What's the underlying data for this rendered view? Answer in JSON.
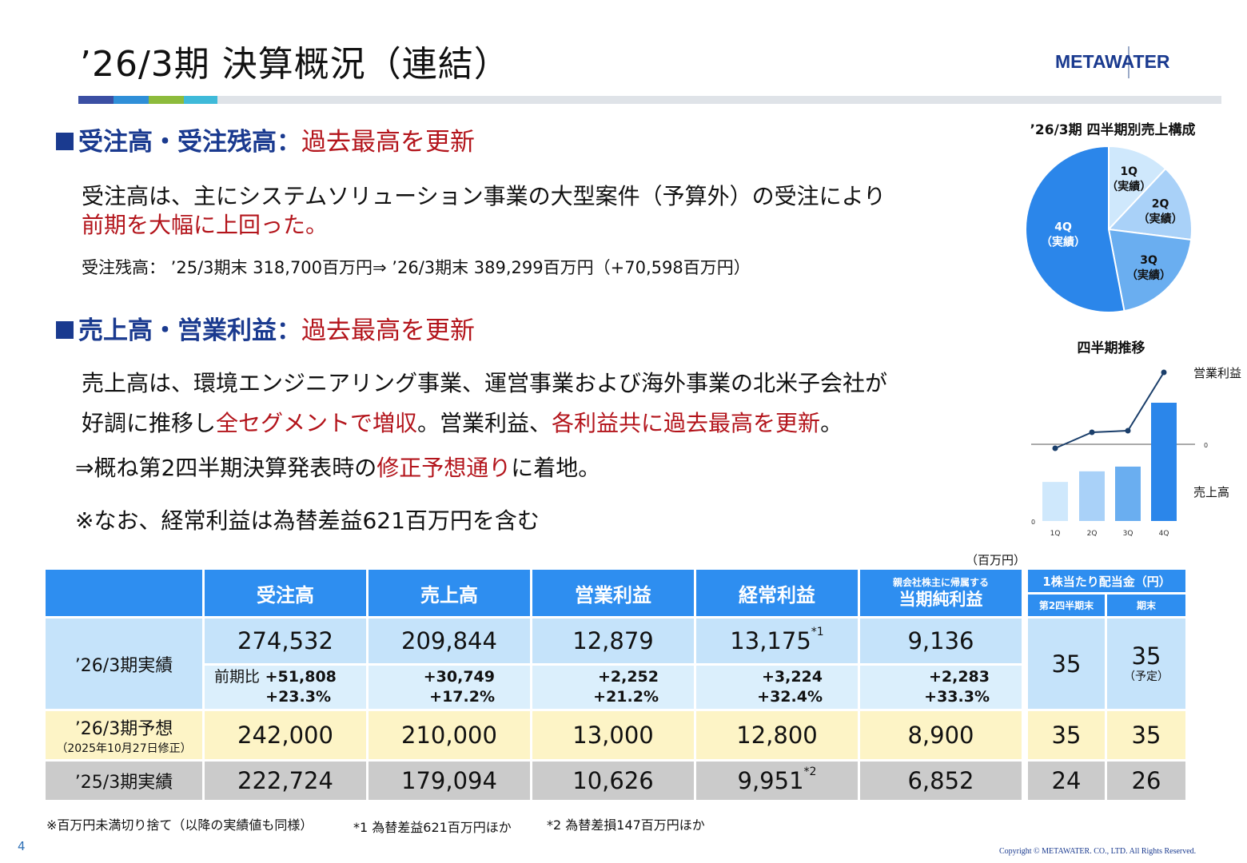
{
  "header": {
    "title": "’26/3期 決算概況（連結）",
    "logo_text": "METAWATER",
    "bar_colors": [
      "#3b4fa3",
      "#2f8fd8",
      "#8dbb3c",
      "#3fbad9",
      "#dfe3e8"
    ]
  },
  "section1": {
    "heading": "受注高・受注残高：",
    "highlight": "過去最高を更新",
    "line1": "受注高は、主にシステムソリューション事業の大型案件（予算外）の受注により",
    "line2": "前期を大幅に上回った。",
    "backlog": "受注残高： ’25/3期末 318,700百万円⇒ ’26/3期末 389,299百万円（+70,598百万円）"
  },
  "section2": {
    "heading": "売上高・営業利益：",
    "highlight": "過去最高を更新",
    "line1": "売上高は、環境エンジニアリング事業、運営事業および海外事業の北米子会社が",
    "line2_a": "好調に推移し",
    "line2_b": "全セグメントで増収",
    "line2_c": "。営業利益、",
    "line2_d": "各利益共に過去最高を更新",
    "line2_e": "。",
    "line3_a": "⇒概ね第2四半期決算発表時の",
    "line3_b": "修正予想通り",
    "line3_c": "に着地。",
    "line4": "※なお、経常利益は為替差益621百万円を含む"
  },
  "pie_chart": {
    "title": "’26/3期 四半期別売上構成",
    "slice_label_suffix": "（実績）",
    "chart_data": {
      "type": "pie",
      "categories": [
        "1Q",
        "2Q",
        "3Q",
        "4Q"
      ],
      "values": [
        12,
        15,
        20,
        53
      ],
      "colors": [
        "#cfe8fc",
        "#a9d1f8",
        "#6aaef0",
        "#2b86ea"
      ]
    }
  },
  "trend_chart": {
    "title": "四半期推移",
    "line_label": "営業利益",
    "bar_label": "売上高",
    "zero_right": "0",
    "zero_bottom": "0",
    "chart_data": {
      "type": "bar",
      "categories": [
        "1Q",
        "2Q",
        "3Q",
        "4Q"
      ],
      "series": [
        {
          "name": "売上高",
          "values": [
            0.33,
            0.42,
            0.46,
            1.0
          ],
          "colors": [
            "#cfe8fc",
            "#a9d1f8",
            "#6aaef0",
            "#2b86ea"
          ]
        },
        {
          "name": "営業利益",
          "values": [
            -0.05,
            0.15,
            0.17,
            0.9
          ],
          "color": "#1b3f6b"
        }
      ]
    }
  },
  "table": {
    "unit": "（百万円）",
    "headers": {
      "orders": "受注高",
      "sales": "売上高",
      "op_income": "営業利益",
      "ord_income": "経常利益",
      "net_income_small": "親会社株主に帰属する",
      "net_income": "当期純利益",
      "dividend": "1株当たり配当金（円）",
      "div_q2": "第2四半期末",
      "div_fy": "期末"
    },
    "rows": {
      "actual26": {
        "label": "’26/3期実績",
        "orders": "274,532",
        "sales": "209,844",
        "op_income": "12,879",
        "ord_income": "13,175",
        "ord_note": "*1",
        "net_income": "9,136",
        "div_q2": "35",
        "div_fy": "35",
        "div_fy_note": "（予定）"
      },
      "yoy": {
        "label": "前期比",
        "orders_abs": "+51,808",
        "orders_pct": "+23.3%",
        "sales_abs": "+30,749",
        "sales_pct": "+17.2%",
        "op_abs": "+2,252",
        "op_pct": "+21.2%",
        "ord_abs": "+3,224",
        "ord_pct": "+32.4%",
        "net_abs": "+2,283",
        "net_pct": "+33.3%"
      },
      "forecast26": {
        "label": "’26/3期予想",
        "sublabel": "（2025年10月27日修正）",
        "orders": "242,000",
        "sales": "210,000",
        "op_income": "13,000",
        "ord_income": "12,800",
        "net_income": "8,900",
        "div_q2": "35",
        "div_fy": "35"
      },
      "actual25": {
        "label": "’25/3期実績",
        "orders": "222,724",
        "sales": "179,094",
        "op_income": "10,626",
        "ord_income": "9,951",
        "ord_note": "*2",
        "net_income": "6,852",
        "div_q2": "24",
        "div_fy": "26"
      }
    }
  },
  "footnotes": {
    "n0": "※百万円未満切り捨て（以降の実績値も同様）",
    "n1": "*1 為替差益621百万円ほか",
    "n2": "*2 為替差損147百万円ほか"
  },
  "page_number": "4",
  "copyright": "Copyright © METAWATER. CO., LTD.  All Rights Reserved."
}
